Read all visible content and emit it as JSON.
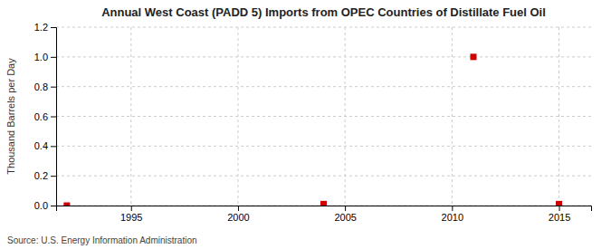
{
  "chart_data": {
    "type": "scatter",
    "title": "Annual West Coast (PADD 5) Imports from OPEC Countries of Distillate Fuel Oil",
    "ylabel": "Thousand Barrels per Day",
    "source": "Source: U.S. Energy Information Administration",
    "x": [
      1992,
      2004,
      2011,
      2015
    ],
    "values": [
      0.0,
      0.01,
      1.0,
      0.01
    ],
    "color": "#CC0000",
    "marker": "square",
    "xlim": [
      1991.5,
      2016.5
    ],
    "xticks": [
      1995,
      2000,
      2005,
      2010,
      2015
    ],
    "ylim": [
      0.0,
      1.2
    ],
    "yticks": [
      {
        "value": 0.0,
        "label": "0.0"
      },
      0.2,
      0.4,
      0.6,
      0.8,
      {
        "value": 1.0,
        "label": "1.0"
      },
      1.2
    ],
    "grid": true
  }
}
